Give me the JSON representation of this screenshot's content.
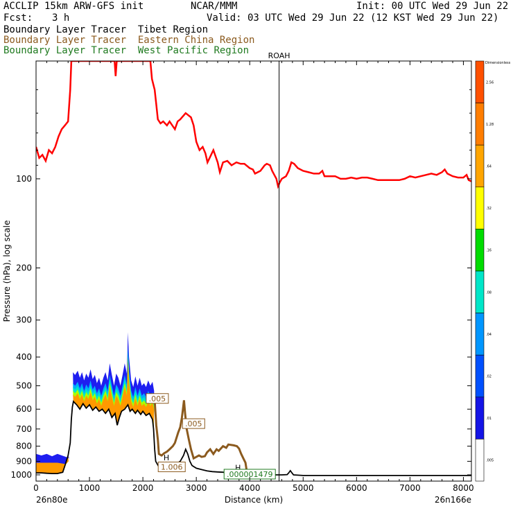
{
  "header": {
    "model": "ACCLIP 15km ARW-GFS init",
    "org": "NCAR/MMM",
    "init": "Init: 00 UTC Wed 29 Jun 22",
    "fcst_label": "Fcst:",
    "fcst_value": "3 h",
    "valid": "Valid: 03 UTC Wed 29 Jun 22 (12 KST Wed 29 Jun 22)",
    "lines": [
      {
        "a": "Boundary Layer Tracer",
        "b": "Tibet Region",
        "color": "#000000"
      },
      {
        "a": "Boundary Layer Tracer",
        "b": "Eastern China Region",
        "color": "#8b5a1e"
      },
      {
        "a": "Boundary Layer Tracer",
        "b": "West Pacific Region",
        "color": "#1f7a1f"
      }
    ]
  },
  "chart_data": {
    "type": "line",
    "xlabel": "Distance (km)",
    "ylabel": "Pressure (hPa), log scale",
    "x_ticks": [
      "0",
      "1000",
      "2000",
      "3000",
      "4000",
      "5000",
      "6000",
      "7000",
      "8000"
    ],
    "x_tick_values": [
      0,
      1000,
      2000,
      3000,
      4000,
      5000,
      6000,
      7000,
      8000
    ],
    "y_ticks": [
      "100",
      "200",
      "300",
      "400",
      "500",
      "600",
      "700",
      "800",
      "900",
      "1000"
    ],
    "y_tick_values": [
      100,
      200,
      300,
      400,
      500,
      600,
      700,
      800,
      900,
      1000
    ],
    "xlim": [
      0,
      8150
    ],
    "ylim": [
      1050,
      40
    ],
    "y_scale": "log",
    "left_endpoint": "26n80e",
    "right_endpoint": "26n166e",
    "marker": {
      "label": "ROAH",
      "x": 4550
    },
    "tropopause_color": "#ff0000",
    "tropopause": [
      [
        0,
        78
      ],
      [
        60,
        85
      ],
      [
        120,
        83
      ],
      [
        180,
        87
      ],
      [
        240,
        80
      ],
      [
        300,
        82
      ],
      [
        360,
        78
      ],
      [
        420,
        72
      ],
      [
        480,
        68
      ],
      [
        540,
        66
      ],
      [
        600,
        64
      ],
      [
        640,
        50
      ],
      [
        660,
        40
      ],
      [
        1470,
        40
      ],
      [
        1490,
        45
      ],
      [
        1510,
        40
      ],
      [
        2140,
        40
      ],
      [
        2170,
        46
      ],
      [
        2220,
        50
      ],
      [
        2250,
        56
      ],
      [
        2280,
        63
      ],
      [
        2330,
        65
      ],
      [
        2380,
        64
      ],
      [
        2450,
        66
      ],
      [
        2500,
        64
      ],
      [
        2600,
        68
      ],
      [
        2650,
        64
      ],
      [
        2700,
        63
      ],
      [
        2800,
        60
      ],
      [
        2900,
        62
      ],
      [
        2950,
        66
      ],
      [
        3000,
        75
      ],
      [
        3060,
        80
      ],
      [
        3120,
        78
      ],
      [
        3170,
        82
      ],
      [
        3210,
        88
      ],
      [
        3250,
        85
      ],
      [
        3320,
        80
      ],
      [
        3400,
        88
      ],
      [
        3440,
        95
      ],
      [
        3500,
        88
      ],
      [
        3580,
        87
      ],
      [
        3660,
        90
      ],
      [
        3750,
        88
      ],
      [
        3830,
        89
      ],
      [
        3900,
        89
      ],
      [
        4000,
        92
      ],
      [
        4060,
        93
      ],
      [
        4100,
        96
      ],
      [
        4200,
        94
      ],
      [
        4280,
        90
      ],
      [
        4320,
        89
      ],
      [
        4380,
        90
      ],
      [
        4420,
        94
      ],
      [
        4460,
        97
      ],
      [
        4500,
        100
      ],
      [
        4530,
        106
      ],
      [
        4560,
        103
      ],
      [
        4600,
        100
      ],
      [
        4680,
        98
      ],
      [
        4730,
        94
      ],
      [
        4780,
        88
      ],
      [
        4830,
        89
      ],
      [
        4900,
        92
      ],
      [
        5000,
        94
      ],
      [
        5100,
        95
      ],
      [
        5200,
        96
      ],
      [
        5300,
        96
      ],
      [
        5360,
        94
      ],
      [
        5400,
        98
      ],
      [
        5500,
        98
      ],
      [
        5600,
        98
      ],
      [
        5700,
        100
      ],
      [
        5800,
        100
      ],
      [
        5900,
        99
      ],
      [
        6000,
        100
      ],
      [
        6100,
        99
      ],
      [
        6200,
        99
      ],
      [
        6300,
        100
      ],
      [
        6400,
        101
      ],
      [
        6500,
        101
      ],
      [
        6600,
        101
      ],
      [
        6700,
        101
      ],
      [
        6800,
        101
      ],
      [
        6900,
        100
      ],
      [
        7000,
        98
      ],
      [
        7100,
        99
      ],
      [
        7200,
        98
      ],
      [
        7300,
        97
      ],
      [
        7400,
        96
      ],
      [
        7500,
        97
      ],
      [
        7600,
        95
      ],
      [
        7650,
        93
      ],
      [
        7700,
        96
      ],
      [
        7800,
        98
      ],
      [
        7900,
        99
      ],
      [
        8000,
        99
      ],
      [
        8060,
        97
      ],
      [
        8100,
        101
      ],
      [
        8150,
        102
      ]
    ],
    "terrain": [
      [
        0,
        985
      ],
      [
        100,
        985
      ],
      [
        200,
        988
      ],
      [
        300,
        990
      ],
      [
        400,
        990
      ],
      [
        500,
        980
      ],
      [
        550,
        920
      ],
      [
        600,
        860
      ],
      [
        640,
        780
      ],
      [
        660,
        650
      ],
      [
        680,
        590
      ],
      [
        700,
        565
      ],
      [
        760,
        580
      ],
      [
        820,
        600
      ],
      [
        880,
        575
      ],
      [
        940,
        595
      ],
      [
        1000,
        580
      ],
      [
        1060,
        605
      ],
      [
        1120,
        590
      ],
      [
        1180,
        610
      ],
      [
        1240,
        600
      ],
      [
        1300,
        620
      ],
      [
        1360,
        600
      ],
      [
        1420,
        640
      ],
      [
        1480,
        620
      ],
      [
        1520,
        680
      ],
      [
        1560,
        640
      ],
      [
        1600,
        610
      ],
      [
        1660,
        600
      ],
      [
        1720,
        580
      ],
      [
        1760,
        610
      ],
      [
        1800,
        600
      ],
      [
        1860,
        620
      ],
      [
        1900,
        605
      ],
      [
        1960,
        625
      ],
      [
        2000,
        610
      ],
      [
        2060,
        630
      ],
      [
        2120,
        620
      ],
      [
        2180,
        650
      ],
      [
        2200,
        700
      ],
      [
        2220,
        820
      ],
      [
        2240,
        900
      ],
      [
        2300,
        940
      ],
      [
        2400,
        945
      ],
      [
        2480,
        940
      ],
      [
        2560,
        930
      ],
      [
        2640,
        915
      ],
      [
        2700,
        900
      ],
      [
        2760,
        860
      ],
      [
        2800,
        820
      ],
      [
        2840,
        850
      ],
      [
        2880,
        900
      ],
      [
        2920,
        930
      ],
      [
        3000,
        950
      ],
      [
        3100,
        960
      ],
      [
        3200,
        970
      ],
      [
        3300,
        975
      ],
      [
        3400,
        978
      ],
      [
        3500,
        980
      ],
      [
        3600,
        985
      ],
      [
        3800,
        990
      ],
      [
        4000,
        992
      ],
      [
        4200,
        995
      ],
      [
        4400,
        998
      ],
      [
        4500,
        1000
      ],
      [
        4600,
        1000
      ],
      [
        4700,
        998
      ],
      [
        4730,
        985
      ],
      [
        4760,
        968
      ],
      [
        4790,
        985
      ],
      [
        4820,
        1000
      ],
      [
        5000,
        1005
      ],
      [
        5500,
        1005
      ],
      [
        6000,
        1005
      ],
      [
        6500,
        1005
      ],
      [
        7000,
        1005
      ],
      [
        7500,
        1005
      ],
      [
        8150,
        1005
      ]
    ],
    "tibet_tracer": {
      "envelope": [
        [
          690,
          450
        ],
        [
          730,
          460
        ],
        [
          780,
          445
        ],
        [
          820,
          470
        ],
        [
          860,
          450
        ],
        [
          900,
          480
        ],
        [
          940,
          455
        ],
        [
          980,
          470
        ],
        [
          1020,
          440
        ],
        [
          1060,
          475
        ],
        [
          1100,
          460
        ],
        [
          1140,
          490
        ],
        [
          1180,
          470
        ],
        [
          1220,
          500
        ],
        [
          1260,
          470
        ],
        [
          1300,
          450
        ],
        [
          1340,
          480
        ],
        [
          1380,
          420
        ],
        [
          1420,
          460
        ],
        [
          1460,
          500
        ],
        [
          1500,
          455
        ],
        [
          1540,
          470
        ],
        [
          1580,
          500
        ],
        [
          1620,
          460
        ],
        [
          1660,
          420
        ],
        [
          1700,
          455
        ],
        [
          1720,
          330
        ],
        [
          1740,
          400
        ],
        [
          1780,
          480
        ],
        [
          1820,
          505
        ],
        [
          1860,
          465
        ],
        [
          1900,
          500
        ],
        [
          1940,
          470
        ],
        [
          1980,
          500
        ],
        [
          2020,
          490
        ],
        [
          2060,
          505
        ],
        [
          2100,
          480
        ],
        [
          2140,
          500
        ],
        [
          2180,
          485
        ],
        [
          2210,
          520
        ]
      ],
      "inner_blue": 520,
      "cyan_band": 540,
      "orange_top": 560,
      "left_pool": {
        "x_start": 0,
        "x_end": 560,
        "top": 850,
        "orange_top": 910
      }
    },
    "eastern_tracer": [
      [
        2180,
        540
      ],
      [
        2220,
        560
      ],
      [
        2250,
        680
      ],
      [
        2280,
        760
      ],
      [
        2300,
        850
      ],
      [
        2350,
        860
      ],
      [
        2400,
        845
      ],
      [
        2450,
        835
      ],
      [
        2500,
        820
      ],
      [
        2560,
        800
      ],
      [
        2600,
        780
      ],
      [
        2660,
        720
      ],
      [
        2700,
        690
      ],
      [
        2730,
        640
      ],
      [
        2750,
        600
      ],
      [
        2770,
        560
      ],
      [
        2790,
        620
      ],
      [
        2820,
        700
      ],
      [
        2860,
        760
      ],
      [
        2900,
        820
      ],
      [
        2950,
        880
      ],
      [
        3000,
        870
      ],
      [
        3050,
        860
      ],
      [
        3100,
        870
      ],
      [
        3160,
        865
      ],
      [
        3200,
        840
      ],
      [
        3260,
        820
      ],
      [
        3320,
        850
      ],
      [
        3380,
        820
      ],
      [
        3420,
        830
      ],
      [
        3500,
        800
      ],
      [
        3560,
        810
      ],
      [
        3600,
        790
      ],
      [
        3700,
        795
      ],
      [
        3760,
        800
      ],
      [
        3800,
        815
      ],
      [
        3840,
        850
      ],
      [
        3880,
        880
      ],
      [
        3920,
        910
      ],
      [
        3940,
        960
      ]
    ],
    "contour_labels": [
      {
        "text": ".005",
        "x": 2270,
        "y": 555,
        "color": "#8b5a1e"
      },
      {
        "text": ".005",
        "x": 2950,
        "y": 675,
        "color": "#8b5a1e"
      },
      {
        "text": "H",
        "x": 2440,
        "y": 880,
        "color": "#000000"
      },
      {
        "text": "1.006",
        "x": 2540,
        "y": 945,
        "color": "#8b5a1e"
      },
      {
        "text": "H",
        "x": 3780,
        "y": 950,
        "color": "#000000"
      },
      {
        "text": ".000001479",
        "x": 4000,
        "y": 1000,
        "color": "#1f7a1f"
      }
    ],
    "colorbar": {
      "title": "Dimensionless",
      "labels": [
        "2.56",
        "1.28",
        ".64",
        ".32",
        ".16",
        ".08",
        ".04",
        ".02",
        ".01",
        ".005"
      ],
      "colors": [
        "#ff5000",
        "#ff7d00",
        "#ffa500",
        "#ffff00",
        "#00dc00",
        "#00e6c8",
        "#0096ff",
        "#0050ff",
        "#1414e6",
        "#ffffff"
      ]
    }
  }
}
